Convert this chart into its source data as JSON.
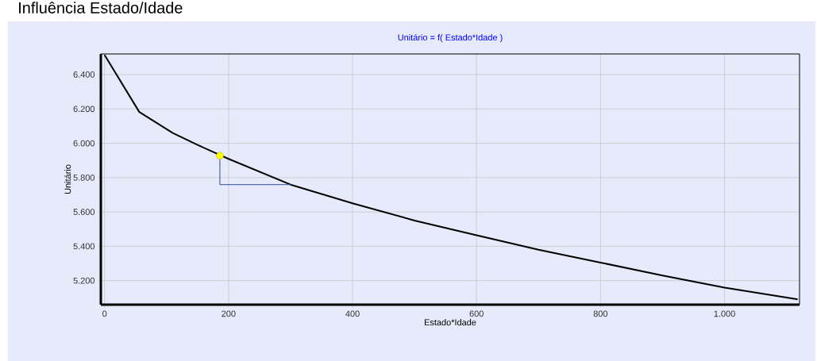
{
  "chart_data": {
    "type": "line",
    "title": "Influência Estado/Idade",
    "subtitle": "Unitário = f( Estado*Idade )",
    "xlabel": "Estado*Idade",
    "ylabel": "Unitário",
    "xlim": [
      -6,
      1121
    ],
    "ylim": [
      5060,
      6520
    ],
    "xticks": [
      0,
      200,
      400,
      600,
      800,
      {
        "value": 1000,
        "label": "1.000"
      }
    ],
    "yticks": [
      {
        "value": 5200,
        "label": "5.200"
      },
      {
        "value": 5400,
        "label": "5.400"
      },
      {
        "value": 5600,
        "label": "5.600"
      },
      {
        "value": 5800,
        "label": "5.800"
      },
      {
        "value": 6000,
        "label": "6.000"
      },
      {
        "value": 6200,
        "label": "6.200"
      },
      {
        "value": 6400,
        "label": "6.400"
      }
    ],
    "grid": true,
    "series": [
      {
        "type": "line",
        "color": "#000000",
        "marker": "none",
        "x": [
          0,
          56,
          110,
          150,
          200,
          300,
          400,
          500,
          600,
          700,
          800,
          900,
          1000,
          1118
        ],
        "values": [
          6514,
          6182,
          6060,
          5990,
          5909,
          5759,
          5650,
          5550,
          5464,
          5380,
          5305,
          5230,
          5159,
          5091
        ]
      },
      {
        "type": "line",
        "color": "#2e4f8f",
        "marker": "none",
        "x": [
          186,
          186,
          301
        ],
        "values": [
          5927,
          5759,
          5759
        ]
      },
      {
        "type": "scatter",
        "color": "#ffff00",
        "marker": "circle",
        "x": [
          186
        ],
        "values": [
          5927
        ]
      }
    ]
  }
}
